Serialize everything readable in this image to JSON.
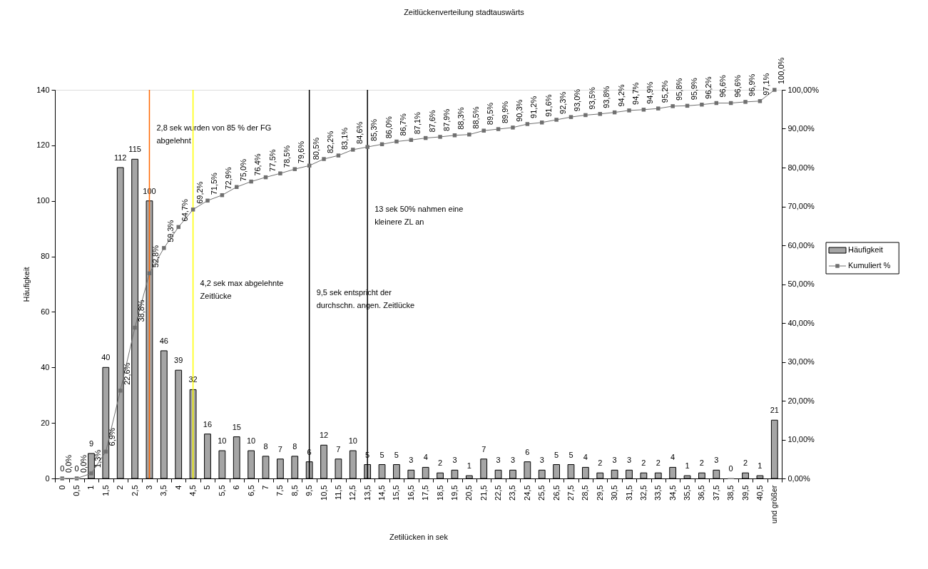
{
  "chart_data": {
    "type": "bar",
    "title": "Zeitlückenverteilung stadtauswärts",
    "xlabel": "Zetilücken in sek",
    "ylabel": "Häufigkeit",
    "categories": [
      "0",
      "0,5",
      "1",
      "1,5",
      "2",
      "2,5",
      "3",
      "3,5",
      "4",
      "4,5",
      "5",
      "5,5",
      "6",
      "6,5",
      "7",
      "7,5",
      "8,5",
      "9,5",
      "10,5",
      "11,5",
      "12,5",
      "13,5",
      "14,5",
      "15,5",
      "16,5",
      "17,5",
      "18,5",
      "19,5",
      "20,5",
      "21,5",
      "22,5",
      "23,5",
      "24,5",
      "25,5",
      "26,5",
      "27,5",
      "28,5",
      "29,5",
      "30,5",
      "31,5",
      "32,5",
      "33,5",
      "34,5",
      "35,5",
      "36,5",
      "37,5",
      "38,5",
      "39,5",
      "40,5",
      "und größer"
    ],
    "series": [
      {
        "name": "Häufigkeit",
        "color": "#a5a5a5",
        "values": [
          0,
          0,
          9,
          40,
          112,
          115,
          100,
          46,
          39,
          32,
          16,
          10,
          15,
          10,
          8,
          7,
          8,
          6,
          12,
          7,
          10,
          5,
          5,
          5,
          3,
          4,
          2,
          3,
          1,
          7,
          3,
          3,
          6,
          3,
          5,
          5,
          4,
          2,
          3,
          3,
          2,
          2,
          4,
          1,
          2,
          3,
          0,
          2,
          1,
          21
        ]
      },
      {
        "name": "Kumuliert %",
        "type": "line",
        "axis": "y2",
        "color": "#707070",
        "values": [
          0,
          0,
          1.3,
          6.9,
          22.6,
          38.8,
          52.8,
          59.3,
          64.7,
          69.2,
          71.5,
          72.9,
          75.0,
          76.4,
          77.5,
          78.5,
          79.6,
          80.5,
          82.2,
          83.1,
          84.6,
          85.3,
          86.0,
          86.7,
          87.1,
          87.6,
          87.9,
          88.3,
          88.5,
          89.5,
          89.9,
          90.3,
          91.2,
          91.6,
          92.3,
          93.0,
          93.5,
          93.8,
          94.2,
          94.7,
          94.9,
          95.2,
          95.8,
          95.9,
          96.2,
          96.6,
          96.6,
          96.9,
          97.1,
          100.0
        ],
        "value_labels": [
          "0,0%",
          "0,0%",
          "1,3%",
          "6,9%",
          "22,6%",
          "38,8%",
          "52,8%",
          "59,3%",
          "64,7%",
          "69,2%",
          "71,5%",
          "72,9%",
          "75,0%",
          "76,4%",
          "77,5%",
          "78,5%",
          "79,6%",
          "80,5%",
          "82,2%",
          "83,1%",
          "84,6%",
          "85,3%",
          "86,0%",
          "86,7%",
          "87,1%",
          "87,6%",
          "87,9%",
          "88,3%",
          "88,5%",
          "89,5%",
          "89,9%",
          "90,3%",
          "91,2%",
          "91,6%",
          "92,3%",
          "93,0%",
          "93,5%",
          "93,8%",
          "94,2%",
          "94,7%",
          "94,9%",
          "95,2%",
          "95,8%",
          "95,9%",
          "96,2%",
          "96,6%",
          "96,6%",
          "96,9%",
          "97,1%",
          "100,0%"
        ]
      }
    ],
    "ylim": [
      0,
      140
    ],
    "yticks": [
      0,
      20,
      40,
      60,
      80,
      100,
      120,
      140
    ],
    "y2lim": [
      0,
      100
    ],
    "y2ticks": [
      {
        "value": 0,
        "label": "0,00%"
      },
      {
        "value": 10,
        "label": "10,00%"
      },
      {
        "value": 20,
        "label": "20,00%"
      },
      {
        "value": 30,
        "label": "30,00%"
      },
      {
        "value": 40,
        "label": "40,00%"
      },
      {
        "value": 50,
        "label": "50,00%"
      },
      {
        "value": 60,
        "label": "60,00%"
      },
      {
        "value": 70,
        "label": "70,00%"
      },
      {
        "value": 80,
        "label": "80,00%"
      },
      {
        "value": 90,
        "label": "90,00%"
      },
      {
        "value": 100,
        "label": "100,00%"
      }
    ],
    "data_labels": true,
    "marker": "square",
    "legend": "right",
    "ref_lines": [
      {
        "axis": "x",
        "value": "3",
        "color": "#ff6600",
        "label": "2,8 sek wurden von 85 % der FG abgelehnt"
      },
      {
        "axis": "x",
        "value": "4,5",
        "color": "#ffff00",
        "label": "4,2 sek max abgelehnte Zeitlücke"
      },
      {
        "axis": "x",
        "value": "9,5",
        "color": "#000000",
        "label": "9,5 sek entspricht der durchschn. angen. Zeitlücke"
      },
      {
        "axis": "x",
        "value": "13,5",
        "color": "#000000",
        "label": "13 sek 50% nahmen eine kleinere ZL an"
      }
    ]
  }
}
